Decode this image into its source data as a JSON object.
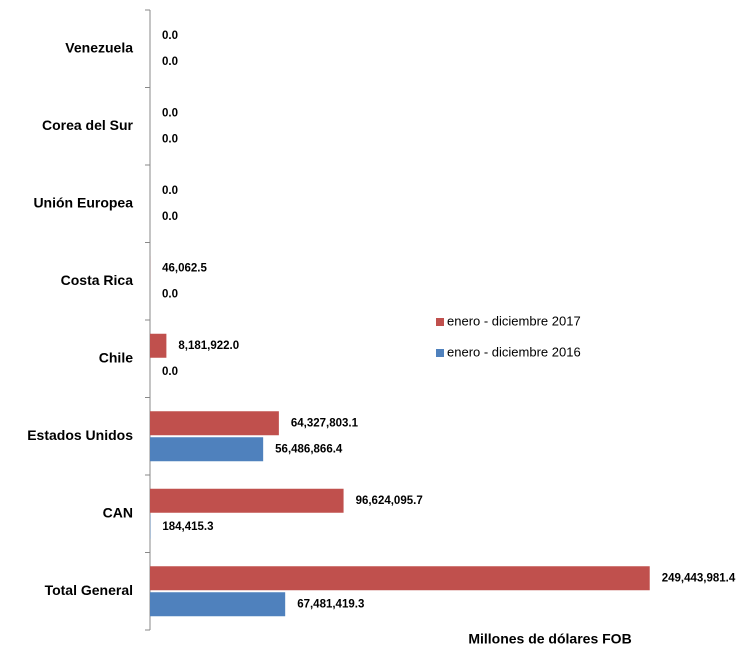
{
  "chart_data": {
    "type": "bar",
    "orientation": "horizontal",
    "categories": [
      "Venezuela",
      "Corea del Sur",
      "Unión Europea",
      "Costa Rica",
      "Chile",
      "Estados Unidos",
      "CAN",
      "Total General"
    ],
    "series": [
      {
        "name": "enero - diciembre 2017",
        "color": "#c0504d",
        "values": [
          0,
          0,
          0,
          46062.5,
          8181922.0,
          64327803.1,
          96624095.7,
          249443981.4
        ],
        "value_labels": [
          "0.0",
          "0.0",
          "0.0",
          "46,062.5",
          "8,181,922.0",
          "64,327,803.1",
          "96,624,095.7",
          "249,443,981.4"
        ]
      },
      {
        "name": "enero - diciembre 2016",
        "color": "#4f81bd",
        "values": [
          0,
          0,
          0,
          0,
          0,
          56486866.4,
          184415.3,
          67481419.3
        ],
        "value_labels": [
          "0.0",
          "0.0",
          "0.0",
          "0.0",
          "0.0",
          "56,486,866.4",
          "184,415.3",
          "67,481,419.3"
        ]
      }
    ],
    "xlim": [
      0,
      300000000
    ],
    "x_label": "Millones de dólares FOB",
    "legend": "right"
  }
}
